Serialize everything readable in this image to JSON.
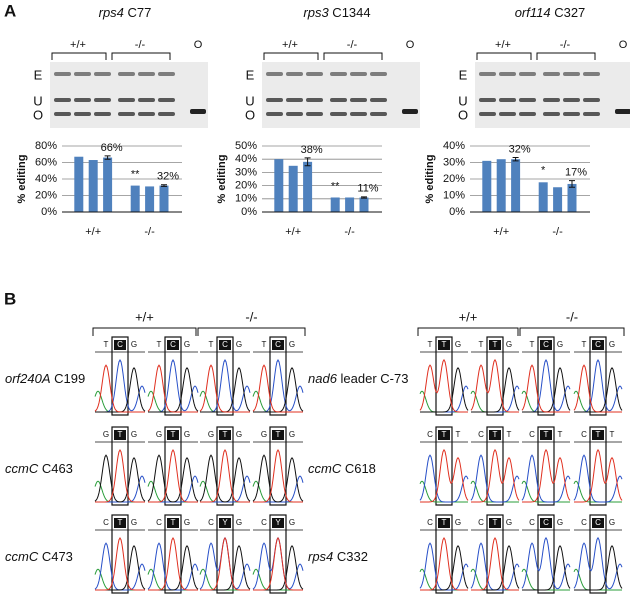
{
  "panel_a": {
    "label": "A",
    "gels": [
      {
        "lanes": [
          "+/+",
          "-/-",
          "O"
        ],
        "bands": [
          "E",
          "U",
          "O"
        ]
      },
      {
        "lanes": [
          "+/+",
          "-/-",
          "O"
        ],
        "bands": [
          "E",
          "U",
          "O"
        ]
      },
      {
        "lanes": [
          "+/+",
          "-/-",
          "O"
        ],
        "bands": [
          "E",
          "U",
          "O"
        ]
      }
    ]
  },
  "chart_data": [
    {
      "type": "bar",
      "title": "rps4 C77",
      "ylabel": "% editing",
      "categories": [
        null,
        "+/+",
        null,
        null,
        "-/-",
        null
      ],
      "values": [
        67,
        63,
        66,
        32,
        31,
        32
      ],
      "errors": [
        null,
        null,
        2,
        null,
        null,
        1
      ],
      "value_labels": [
        null,
        null,
        "66%",
        null,
        null,
        "32%"
      ],
      "annotation": "**",
      "color": "#4f81bd",
      "ylim": [
        0,
        80
      ],
      "yticks": [
        {
          "value": 0,
          "label": "0%"
        },
        {
          "value": 20,
          "label": "20%"
        },
        {
          "value": 40,
          "label": "40%"
        },
        {
          "value": 60,
          "label": "60%"
        },
        {
          "value": 80,
          "label": "80%"
        }
      ],
      "grid": true
    },
    {
      "type": "bar",
      "title": "rps3 C1344",
      "ylabel": "% editing",
      "categories": [
        null,
        "+/+",
        null,
        null,
        "-/-",
        null
      ],
      "values": [
        40,
        35,
        38,
        11,
        11,
        11
      ],
      "errors": [
        null,
        null,
        3,
        null,
        null,
        0.5
      ],
      "value_labels": [
        null,
        null,
        "38%",
        null,
        null,
        "11%"
      ],
      "annotation": "**",
      "color": "#4f81bd",
      "ylim": [
        0,
        50
      ],
      "yticks": [
        {
          "value": 0,
          "label": "0%"
        },
        {
          "value": 10,
          "label": "10%"
        },
        {
          "value": 20,
          "label": "20%"
        },
        {
          "value": 30,
          "label": "30%"
        },
        {
          "value": 40,
          "label": "40%"
        },
        {
          "value": 50,
          "label": "50%"
        }
      ],
      "grid": true
    },
    {
      "type": "bar",
      "title": "orf114 C327",
      "ylabel": "% editing",
      "categories": [
        null,
        "+/+",
        null,
        null,
        "-/-",
        null
      ],
      "values": [
        31,
        32,
        32,
        18,
        15,
        17
      ],
      "errors": [
        null,
        null,
        1,
        null,
        null,
        2
      ],
      "value_labels": [
        null,
        null,
        "32%",
        null,
        null,
        "17%"
      ],
      "annotation": "*",
      "color": "#4f81bd",
      "ylim": [
        0,
        40
      ],
      "yticks": [
        {
          "value": 0,
          "label": "0%"
        },
        {
          "value": 10,
          "label": "10%"
        },
        {
          "value": 20,
          "label": "20%"
        },
        {
          "value": 30,
          "label": "30%"
        },
        {
          "value": 40,
          "label": "40%"
        }
      ],
      "grid": true
    }
  ],
  "panel_b": {
    "label": "B",
    "groups": [
      {
        "headers": [
          "+/+",
          "-/-"
        ],
        "rows": [
          {
            "name": "orf240A C199",
            "flanks": [
              "T",
              "G"
            ],
            "calls": [
              "C",
              "C",
              "C",
              "C"
            ]
          },
          {
            "name": "ccmC C463",
            "flanks": [
              "G",
              "G"
            ],
            "calls": [
              "T",
              "T",
              "T",
              "T"
            ]
          },
          {
            "name": "ccmC C473",
            "flanks": [
              "C",
              "G"
            ],
            "calls": [
              "T",
              "T",
              "Y",
              "Y"
            ]
          }
        ]
      },
      {
        "headers": [
          "+/+",
          "-/-"
        ],
        "rows": [
          {
            "name": "nad6 leader C-73",
            "flanks": [
              "T",
              "G"
            ],
            "calls": [
              "T",
              "T",
              "C",
              "C"
            ]
          },
          {
            "name": "ccmC C618",
            "flanks": [
              "C",
              "T"
            ],
            "calls": [
              "T",
              "T",
              "T",
              "T"
            ]
          },
          {
            "name": "rps4 C332",
            "flanks": [
              "C",
              "G"
            ],
            "calls": [
              "T",
              "T",
              "C",
              "C"
            ]
          }
        ]
      }
    ]
  }
}
